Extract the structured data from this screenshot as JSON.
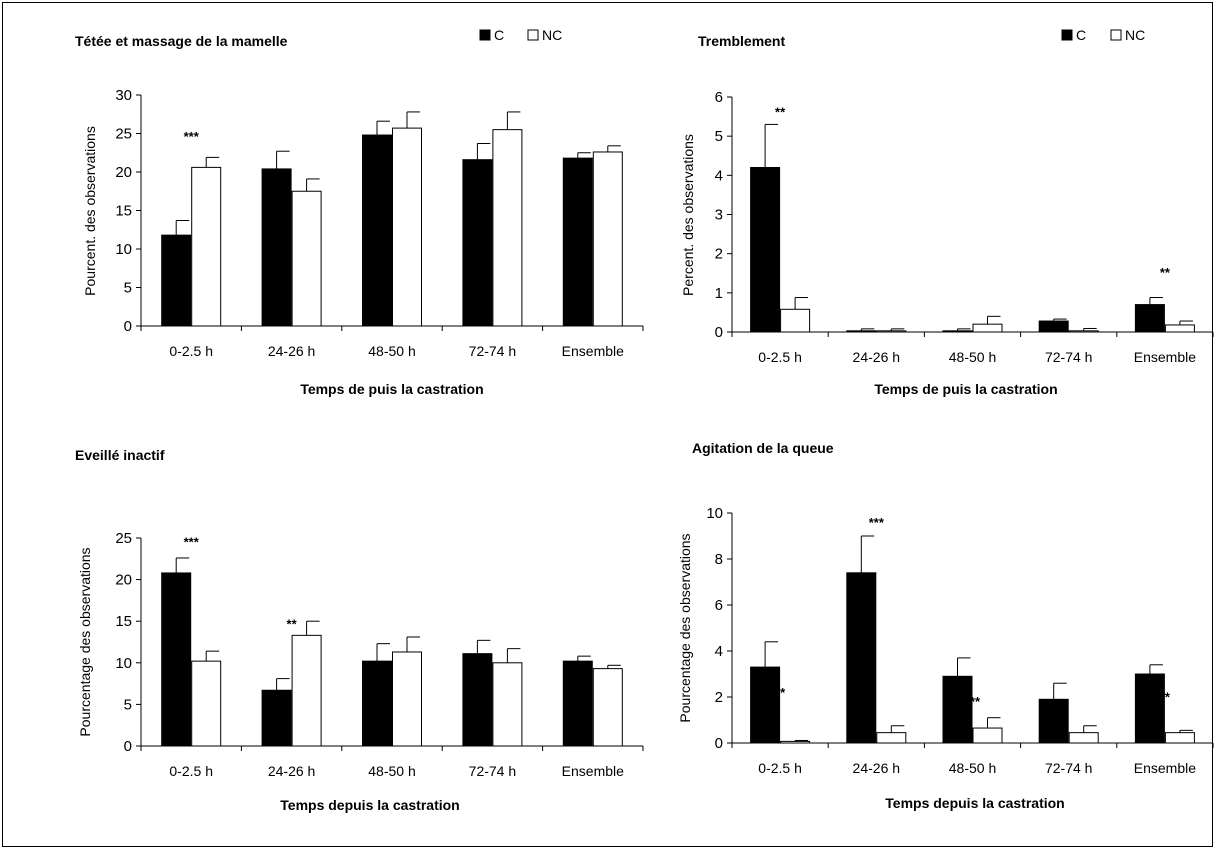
{
  "legend": {
    "c_label": "C",
    "nc_label": "NC"
  },
  "colors": {
    "c": "#000000",
    "nc": "#ffffff",
    "stroke": "#000000"
  },
  "chart_data": [
    {
      "type": "bar",
      "title": "Tétée et massage de la mamelle",
      "xlabel": "Temps de puis la castration",
      "ylabel": "Pourcent. des observations",
      "categories": [
        "0-2.5 h",
        "24-26 h",
        "48-50 h",
        "72-74 h",
        "Ensemble"
      ],
      "ylim": [
        0,
        30
      ],
      "yticks": [
        0,
        5,
        10,
        15,
        20,
        25,
        30
      ],
      "legend_shown": true,
      "series": [
        {
          "name": "C",
          "values": [
            11.8,
            20.4,
            24.8,
            21.6,
            21.8
          ],
          "errors": [
            1.9,
            2.3,
            1.8,
            2.1,
            0.7
          ]
        },
        {
          "name": "NC",
          "values": [
            20.6,
            17.5,
            25.7,
            25.5,
            22.6
          ],
          "errors": [
            1.3,
            1.6,
            2.1,
            2.3,
            0.8
          ]
        }
      ],
      "annotations": [
        {
          "text": "***",
          "category": 0,
          "y": 24.0
        }
      ]
    },
    {
      "type": "bar",
      "title": "Tremblement",
      "xlabel": "Temps de puis la castration",
      "ylabel": "Percent. des observations",
      "categories": [
        "0-2.5 h",
        "24-26 h",
        "48-50 h",
        "72-74 h",
        "Ensemble"
      ],
      "ylim": [
        0,
        6
      ],
      "yticks": [
        0,
        1,
        2,
        3,
        4,
        5,
        6
      ],
      "legend_shown": true,
      "series": [
        {
          "name": "C",
          "values": [
            4.2,
            0.03,
            0.03,
            0.28,
            0.7
          ],
          "errors": [
            1.1,
            0.05,
            0.05,
            0.05,
            0.18
          ]
        },
        {
          "name": "NC",
          "values": [
            0.58,
            0.03,
            0.2,
            0.03,
            0.18
          ],
          "errors": [
            0.3,
            0.05,
            0.2,
            0.06,
            0.1
          ]
        }
      ],
      "annotations": [
        {
          "text": "**",
          "category": 0,
          "y": 5.5
        },
        {
          "text": "**",
          "category": 4,
          "y": 1.4
        }
      ]
    },
    {
      "type": "bar",
      "title": "Eveillé inactif",
      "xlabel": "Temps depuis la castration",
      "ylabel": "Pourcentage des observations",
      "categories": [
        "0-2.5 h",
        "24-26 h",
        "48-50 h",
        "72-74 h",
        "Ensemble"
      ],
      "ylim": [
        0,
        25
      ],
      "yticks": [
        0,
        5,
        10,
        15,
        20,
        25
      ],
      "legend_shown": false,
      "series": [
        {
          "name": "C",
          "values": [
            20.8,
            6.7,
            10.2,
            11.1,
            10.2
          ],
          "errors": [
            1.8,
            1.4,
            2.1,
            1.6,
            0.6
          ]
        },
        {
          "name": "NC",
          "values": [
            10.2,
            13.3,
            11.3,
            10.0,
            9.3
          ],
          "errors": [
            1.2,
            1.7,
            1.8,
            1.7,
            0.4
          ]
        }
      ],
      "annotations": [
        {
          "text": "***",
          "category": 0,
          "y": 24.0
        },
        {
          "text": "**",
          "category": 1,
          "y": 14.1
        }
      ]
    },
    {
      "type": "bar",
      "title": "Agitation de la queue",
      "xlabel": "Temps depuis la castration",
      "ylabel": "Pourcentage des observations",
      "categories": [
        "0-2.5 h",
        "24-26 h",
        "48-50 h",
        "72-74 h",
        "Ensemble"
      ],
      "ylim": [
        0,
        10
      ],
      "yticks": [
        0,
        2,
        4,
        6,
        8,
        10
      ],
      "legend_shown": false,
      "series": [
        {
          "name": "C",
          "values": [
            3.3,
            7.4,
            2.9,
            1.9,
            3.0
          ],
          "errors": [
            1.1,
            1.6,
            0.8,
            0.7,
            0.4
          ]
        },
        {
          "name": "NC",
          "values": [
            0.07,
            0.45,
            0.65,
            0.45,
            0.45
          ],
          "errors": [
            0.04,
            0.3,
            0.45,
            0.3,
            0.1
          ]
        }
      ],
      "annotations": [
        {
          "text": "***",
          "category": 1,
          "y": 9.4
        },
        {
          "text": "**",
          "category": 0,
          "y": 2.0
        },
        {
          "text": "***",
          "category": 2,
          "y": 1.6
        },
        {
          "text": "**",
          "category": 4,
          "y": 1.8
        }
      ]
    }
  ]
}
